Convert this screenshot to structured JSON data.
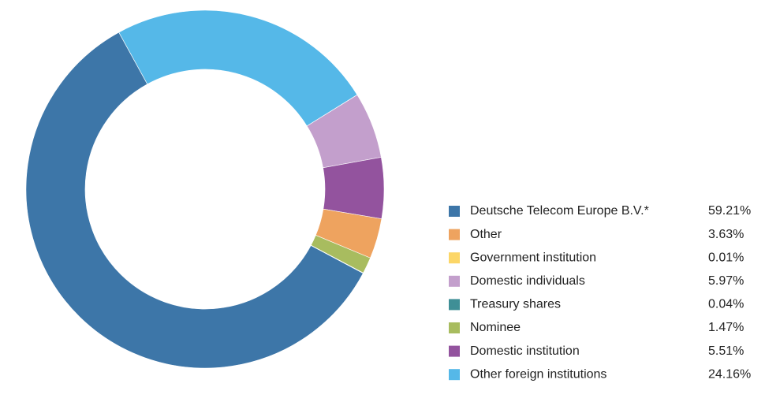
{
  "chart_data": {
    "type": "pie",
    "categories": [
      "Deutsche Telecom Europe B.V.*",
      "Other",
      "Government institution",
      "Domestic individuals",
      "Treasury shares",
      "Nominee",
      "Domestic institution",
      "Other foreign institutions"
    ],
    "values": [
      59.21,
      3.63,
      0.01,
      5.97,
      0.04,
      1.47,
      5.51,
      24.16
    ],
    "value_labels": [
      "59.21%",
      "3.63%",
      "0.01%",
      "5.97%",
      "0.04%",
      "1.47%",
      "5.51%",
      "24.16%"
    ],
    "colors": [
      "#3d76a8",
      "#eea35f",
      "#fcd667",
      "#c39fcc",
      "#3f8f96",
      "#a8bc5f",
      "#93539e",
      "#55b8e8"
    ],
    "legend": "right"
  }
}
